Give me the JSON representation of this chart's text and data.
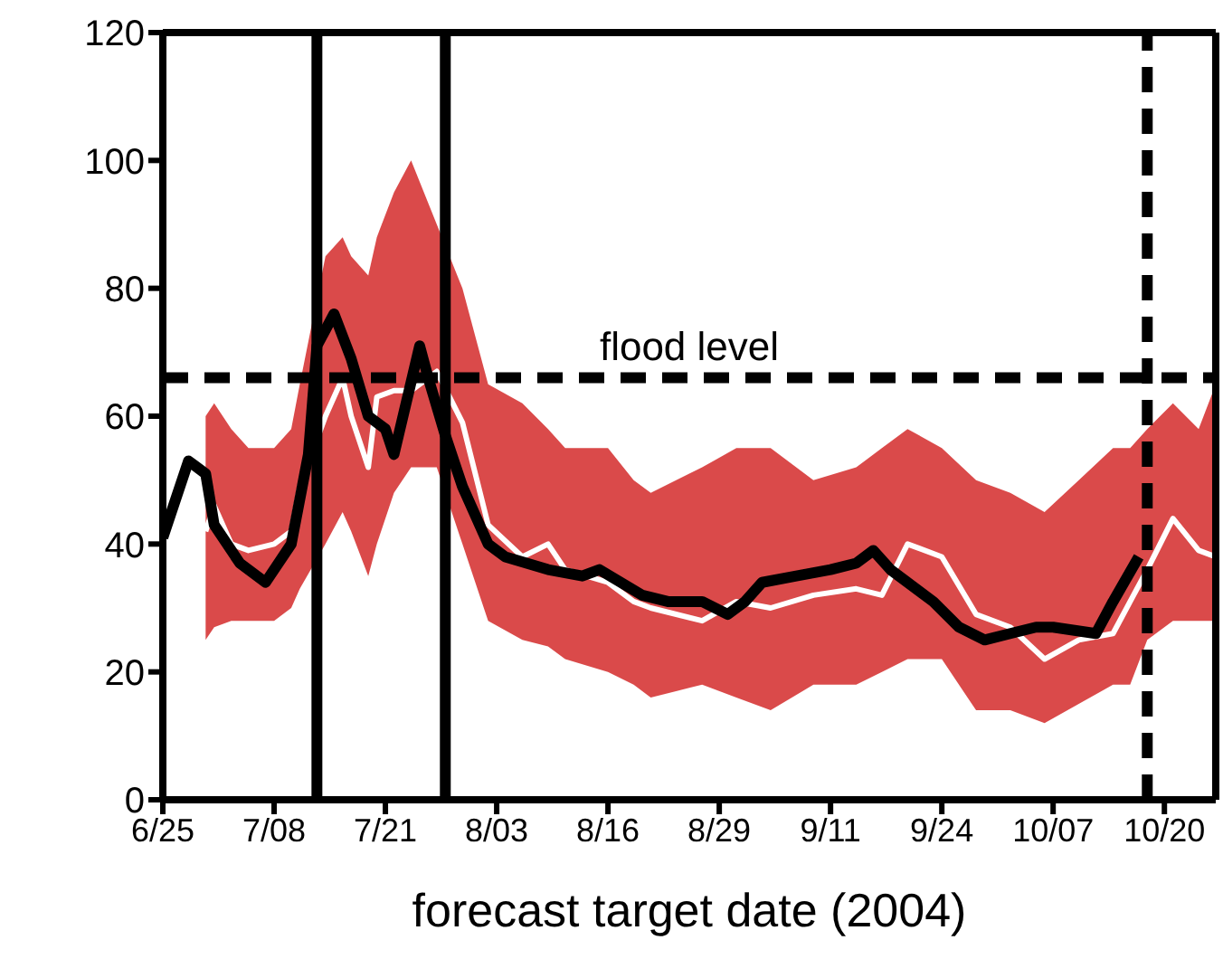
{
  "chart_data": {
    "type": "line",
    "xlabel": "forecast target date (2004)",
    "xlim": [
      "2004-06-25",
      "2004-10-26"
    ],
    "xticks": [
      {
        "value": "2004-06-25",
        "label": "6/25"
      },
      {
        "value": "2004-07-08",
        "label": "7/08"
      },
      {
        "value": "2004-07-21",
        "label": "7/21"
      },
      {
        "value": "2004-08-03",
        "label": "8/03"
      },
      {
        "value": "2004-08-16",
        "label": "8/16"
      },
      {
        "value": "2004-08-29",
        "label": "8/29"
      },
      {
        "value": "2004-09-11",
        "label": "9/11"
      },
      {
        "value": "2004-09-24",
        "label": "9/24"
      },
      {
        "value": "2004-10-07",
        "label": "10/07"
      },
      {
        "value": "2004-10-20",
        "label": "10/20"
      }
    ],
    "ylim": [
      0,
      120
    ],
    "yticks": [
      0,
      20,
      40,
      60,
      80,
      100,
      120
    ],
    "marker": "none",
    "series": [
      {
        "color": "#ffffff",
        "x": [
          "2004-06-30",
          "2004-07-01",
          "2004-07-03",
          "2004-07-05",
          "2004-07-08",
          "2004-07-10",
          "2004-07-11",
          "2004-07-14",
          "2004-07-16",
          "2004-07-17",
          "2004-07-19",
          "2004-07-20",
          "2004-07-22",
          "2004-07-24",
          "2004-07-27",
          "2004-07-30",
          "2004-08-02",
          "2004-08-06",
          "2004-08-09",
          "2004-08-11",
          "2004-08-16",
          "2004-08-19",
          "2004-08-21",
          "2004-08-27",
          "2004-08-31",
          "2004-09-04",
          "2004-09-09",
          "2004-09-14",
          "2004-09-17",
          "2004-09-20",
          "2004-09-24",
          "2004-09-28",
          "2004-10-02",
          "2004-10-06",
          "2004-10-10",
          "2004-10-14",
          "2004-10-16",
          "2004-10-18",
          "2004-10-21",
          "2004-10-24",
          "2004-10-26"
        ],
        "values": [
          42,
          46,
          40,
          39,
          40,
          42,
          49,
          60,
          66,
          60,
          52,
          63,
          64,
          64,
          67,
          59,
          43,
          38,
          40,
          36,
          34,
          31,
          30,
          28,
          31,
          30,
          32,
          33,
          32,
          40,
          38,
          29,
          27,
          22,
          25,
          26,
          31,
          36,
          44,
          39,
          38
        ],
        "lower": [
          25,
          27,
          28,
          28,
          28,
          30,
          33,
          40,
          45,
          42,
          35,
          40,
          48,
          52,
          52,
          40,
          28,
          25,
          24,
          22,
          20,
          18,
          16,
          18,
          16,
          14,
          18,
          18,
          20,
          22,
          22,
          14,
          14,
          12,
          15,
          18,
          18,
          25,
          28,
          28,
          28
        ],
        "upper": [
          60,
          62,
          58,
          55,
          55,
          58,
          65,
          85,
          88,
          85,
          82,
          88,
          95,
          100,
          90,
          80,
          65,
          62,
          58,
          55,
          55,
          50,
          48,
          52,
          55,
          55,
          50,
          52,
          55,
          58,
          55,
          50,
          48,
          45,
          50,
          55,
          55,
          58,
          62,
          58,
          65
        ]
      },
      {
        "color": "#000000",
        "x": [
          "2004-06-25",
          "2004-06-28",
          "2004-06-30",
          "2004-07-01",
          "2004-07-04",
          "2004-07-07",
          "2004-07-10",
          "2004-07-12",
          "2004-07-13",
          "2004-07-15",
          "2004-07-17",
          "2004-07-19",
          "2004-07-21",
          "2004-07-22",
          "2004-07-25",
          "2004-07-26",
          "2004-07-28",
          "2004-07-30",
          "2004-08-02",
          "2004-08-04",
          "2004-08-09",
          "2004-08-13",
          "2004-08-15",
          "2004-08-20",
          "2004-08-23",
          "2004-08-27",
          "2004-08-30",
          "2004-09-01",
          "2004-09-03",
          "2004-09-07",
          "2004-09-11",
          "2004-09-14",
          "2004-09-16",
          "2004-09-18",
          "2004-09-23",
          "2004-09-26",
          "2004-09-29",
          "2004-10-02",
          "2004-10-05",
          "2004-10-07",
          "2004-10-12",
          "2004-10-14",
          "2004-10-17"
        ],
        "values": [
          41,
          53,
          51,
          43,
          37,
          34,
          40,
          54,
          71,
          76,
          69,
          60,
          58,
          54,
          71,
          66,
          57,
          49,
          40,
          38,
          36,
          35,
          36,
          32,
          31,
          31,
          29,
          31,
          34,
          35,
          36,
          37,
          39,
          36,
          31,
          27,
          25,
          26,
          27,
          27,
          26,
          31,
          38
        ]
      }
    ],
    "ref_lines": [
      {
        "axis": "y",
        "value": 66,
        "label": "flood level",
        "line_style": "dashed",
        "color": "#000000"
      },
      {
        "axis": "x",
        "value": "2004-07-13",
        "line_style": "solid",
        "color": "#000000"
      },
      {
        "axis": "x",
        "value": "2004-07-28",
        "line_style": "solid",
        "color": "#000000"
      },
      {
        "axis": "x",
        "value": "2004-10-18",
        "line_style": "dashed",
        "color": "#000000"
      }
    ]
  }
}
